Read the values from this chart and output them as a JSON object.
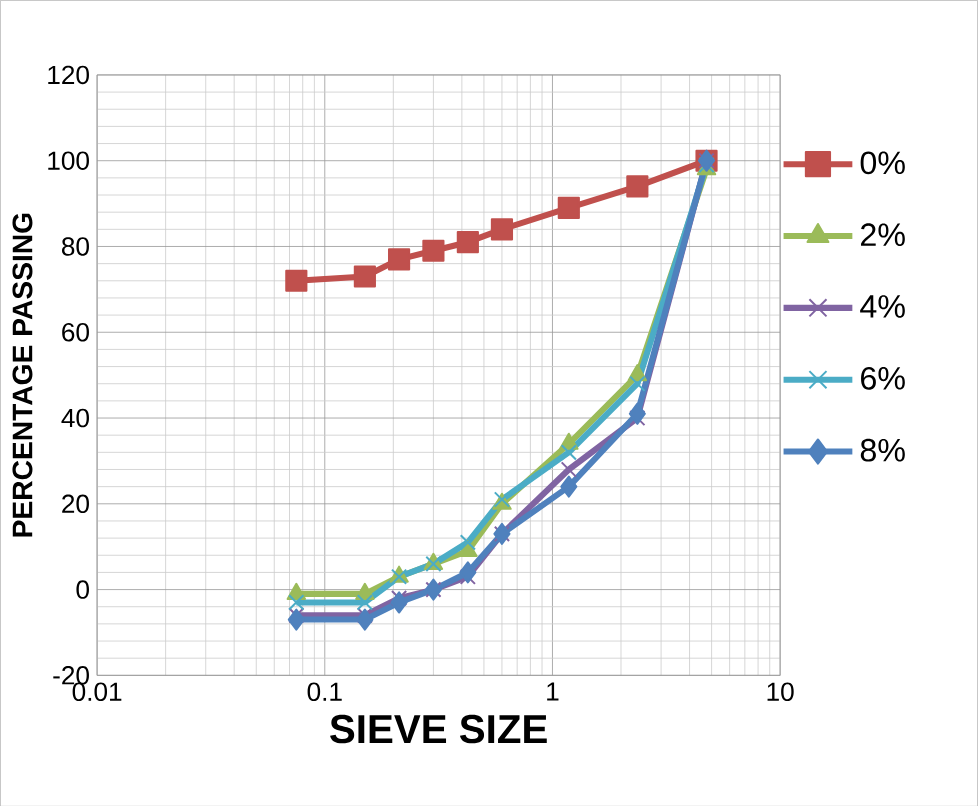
{
  "chart_data": {
    "type": "line",
    "xlabel": "SIEVE SIZE",
    "ylabel": "PERCENTAGE PASSING",
    "x": [
      0.075,
      0.15,
      0.212,
      0.3,
      0.425,
      0.6,
      1.18,
      2.36,
      4.75
    ],
    "series": [
      {
        "name": "0%",
        "color": "#c0504d",
        "marker": "square",
        "values": [
          72,
          73,
          77,
          79,
          81,
          84,
          89,
          94,
          100
        ]
      },
      {
        "name": "2%",
        "color": "#9bbb59",
        "marker": "triangle",
        "values": [
          -1,
          -1,
          3,
          6,
          9,
          20,
          34,
          50,
          98
        ]
      },
      {
        "name": "4%",
        "color": "#8064a2",
        "marker": "cross",
        "values": [
          -6,
          -6,
          -2,
          0,
          3,
          13,
          28,
          40,
          100
        ]
      },
      {
        "name": "6%",
        "color": "#4bacc6",
        "marker": "cross",
        "values": [
          -3,
          -3,
          3,
          6,
          11,
          21,
          32,
          48,
          99
        ]
      },
      {
        "name": "8%",
        "color": "#4f81bd",
        "marker": "diamond",
        "values": [
          -7,
          -7,
          -3,
          0,
          4,
          13,
          24,
          41,
          100
        ]
      }
    ],
    "log": "x",
    "xlim": [
      0.01,
      10
    ],
    "xticks": [
      0.01,
      0.1,
      1,
      10
    ],
    "ylim": [
      -20,
      120
    ],
    "yticks": [
      -20,
      0,
      20,
      40,
      60,
      80,
      100,
      120
    ],
    "grid": true,
    "legend": "right"
  }
}
